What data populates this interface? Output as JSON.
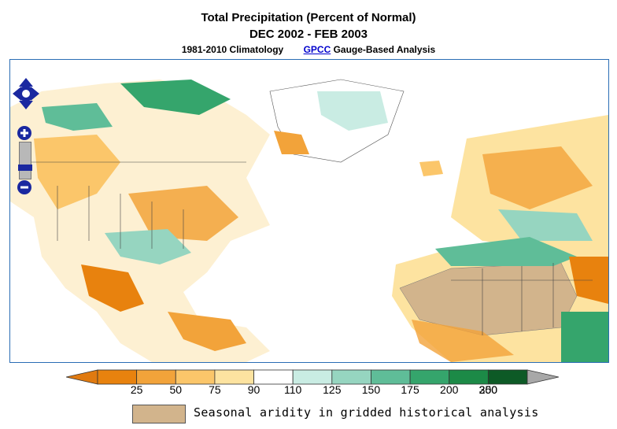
{
  "title": "Total Precipitation (Percent of Normal)",
  "period": "DEC 2002 - FEB 2003",
  "subtitle": {
    "climatology": "1981-2010 Climatology",
    "source_link": "GPCC",
    "analysis": "Gauge-Based Analysis"
  },
  "legend": {
    "ticks": [
      "25",
      "50",
      "75",
      "90",
      "110",
      "125",
      "150",
      "175",
      "200",
      "250",
      "300"
    ],
    "colors": [
      "#e8820e",
      "#f2a33a",
      "#fbc66a",
      "#fde3a0",
      "#ffffff",
      "#c9ece3",
      "#96d5c0",
      "#5fbd98",
      "#35a56c",
      "#1c8a47",
      "#0d5a26"
    ],
    "under_color": "#e07a10",
    "over_color": "#a8a8a8",
    "aridity_color": "#d2b48c",
    "aridity_label": "Seasonal aridity in gridded historical analysis"
  },
  "map_controls": {
    "pan": "pan-control",
    "zoom_in": "+",
    "zoom_out": "−"
  }
}
